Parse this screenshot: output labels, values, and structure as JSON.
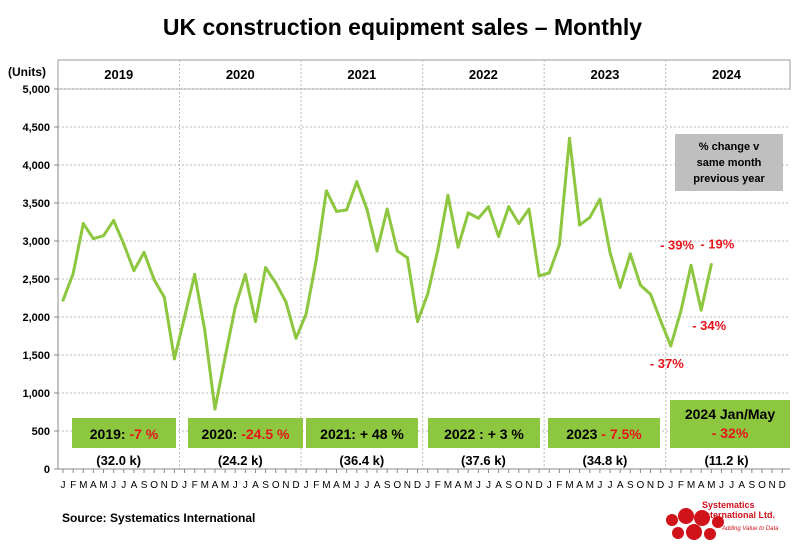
{
  "chart_data": {
    "type": "line",
    "title": "UK construction equipment sales – Monthly",
    "ylabel": "(Units)",
    "ylim": [
      0,
      5000
    ],
    "yticks": [
      "0",
      "500",
      "1,000",
      "1,500",
      "2,000",
      "2,500",
      "3,000",
      "3,500",
      "4,000",
      "4,500",
      "5,000"
    ],
    "grid": true,
    "years": [
      "2019",
      "2020",
      "2021",
      "2022",
      "2023",
      "2024"
    ],
    "month_labels": [
      "J",
      "F",
      "M",
      "A",
      "M",
      "J",
      "J",
      "A",
      "S",
      "O",
      "N",
      "D"
    ],
    "color": "#8dc63f",
    "values": [
      2220,
      2570,
      3230,
      3030,
      3070,
      3270,
      2960,
      2610,
      2850,
      2490,
      2260,
      1450,
      2000,
      2560,
      1820,
      790,
      1470,
      2130,
      2560,
      1940,
      2650,
      2450,
      2200,
      1720,
      2040,
      2750,
      3660,
      3390,
      3410,
      3780,
      3420,
      2870,
      3420,
      2870,
      2780,
      1940,
      2300,
      2880,
      3600,
      2920,
      3370,
      3300,
      3450,
      3060,
      3450,
      3230,
      3420,
      2540,
      2580,
      2950,
      4350,
      3210,
      3310,
      3550,
      2850,
      2390,
      2830,
      2420,
      2300,
      1950,
      1620,
      2080,
      2680,
      2090,
      2690
    ],
    "year_summaries": [
      {
        "label": "2019:",
        "change": "-7 %",
        "total": "(32.0 k)"
      },
      {
        "label": "2020:",
        "change": "-24.5 %",
        "total": "(24.2 k)"
      },
      {
        "label": "2021:  + 48 %",
        "change": "",
        "total": "(36.4 k)"
      },
      {
        "label": "2022 :  + 3 %",
        "change": "",
        "total": "(37.6 k)"
      },
      {
        "label": "2023",
        "change": "- 7.5%",
        "total": "(34.8 k)"
      },
      {
        "label": "2024 Jan/May",
        "change": "- 32%",
        "total": "(11.2 k)"
      }
    ],
    "legend_note": [
      "% change v",
      "same month",
      "previous year"
    ],
    "annotations": [
      {
        "text": "- 37%",
        "month_index": 60
      },
      {
        "text": "- 39%",
        "month_index": 62
      },
      {
        "text": "- 34%",
        "month_index": 63
      },
      {
        "text": "- 19%",
        "month_index": 64
      }
    ],
    "source": "Source: Systematics International"
  },
  "logo": {
    "line1": "Systematics",
    "line2": "International Ltd.",
    "tagline": "Adding Value to Data"
  },
  "colors": {
    "line": "#8dc63f",
    "box": "#8dc63f",
    "neg": "#e8141c",
    "note_bg": "#bfbfbf"
  }
}
